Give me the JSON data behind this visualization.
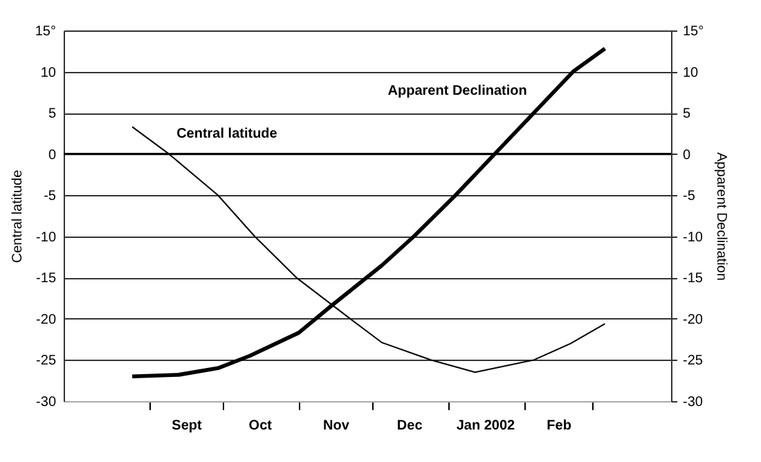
{
  "chart_data": {
    "type": "line",
    "ylabel": "Central latitude",
    "y2label": "Apparent Declination",
    "xlim": [
      "2001-07-28",
      "2002-04-02"
    ],
    "xticks": [
      {
        "value": "2001-09-01",
        "label": null
      },
      {
        "value": "2001-10-01",
        "label": null
      },
      {
        "value": "2001-11-01",
        "label": null
      },
      {
        "value": "2001-12-01",
        "label": null
      },
      {
        "value": "2002-01-01",
        "label": null
      },
      {
        "value": "2002-02-01",
        "label": null
      },
      {
        "value": "2002-03-01",
        "label": null
      },
      {
        "value": "2001-09-16",
        "label": "Sept"
      },
      {
        "value": "2001-10-16",
        "label": "Oct"
      },
      {
        "value": "2001-11-16",
        "label": "Nov"
      },
      {
        "value": "2001-12-16",
        "label": "Dec"
      },
      {
        "value": "2002-01-16",
        "label": "Jan 2002"
      },
      {
        "value": "2002-02-15",
        "label": "Feb"
      }
    ],
    "ylim": [
      -30,
      15
    ],
    "yticks": [
      -30,
      -25,
      -20,
      -15,
      -10,
      -5,
      0,
      5,
      10,
      {
        "value": 15,
        "label": "15°"
      }
    ],
    "y2lim": [
      -30,
      15
    ],
    "y2ticks": [
      -30,
      -25,
      -20,
      -15,
      -10,
      -5,
      0,
      5,
      10,
      {
        "value": 15,
        "label": "15°"
      }
    ],
    "grid": "y",
    "legend": false,
    "marker": "none",
    "line_style": "solid",
    "ref_lines": [
      {
        "axis": "y",
        "value": 0,
        "color": "#000000"
      }
    ],
    "series": [
      {
        "name": "Central latitude",
        "color": "#000000",
        "x": [
          "2001-08-25",
          "2001-09-09",
          "2001-09-29",
          "2001-10-14",
          "2001-10-31",
          "2001-11-22",
          "2001-12-05",
          "2001-12-25",
          "2002-01-12",
          "2002-02-05",
          "2002-02-20",
          "2002-03-06"
        ],
        "values": [
          3.3,
          0,
          -5,
          -10,
          -15,
          -20,
          -22.9,
          -25,
          -26.5,
          -25,
          -23,
          -20.6
        ]
      },
      {
        "name": "Apparent Declination",
        "color": "#000000",
        "axis": "y2",
        "x": [
          "2001-08-25",
          "2001-09-13",
          "2001-09-29",
          "2001-10-12",
          "2001-11-01",
          "2001-11-14",
          "2001-12-05",
          "2001-12-18",
          "2002-01-04",
          "2002-01-20",
          "2002-02-05",
          "2002-02-21",
          "2002-03-06"
        ],
        "values": [
          -27,
          -26.8,
          -26,
          -24.5,
          -21.7,
          -18.5,
          -13.5,
          -10,
          -5,
          0,
          5,
          10,
          12.8
        ]
      }
    ]
  }
}
